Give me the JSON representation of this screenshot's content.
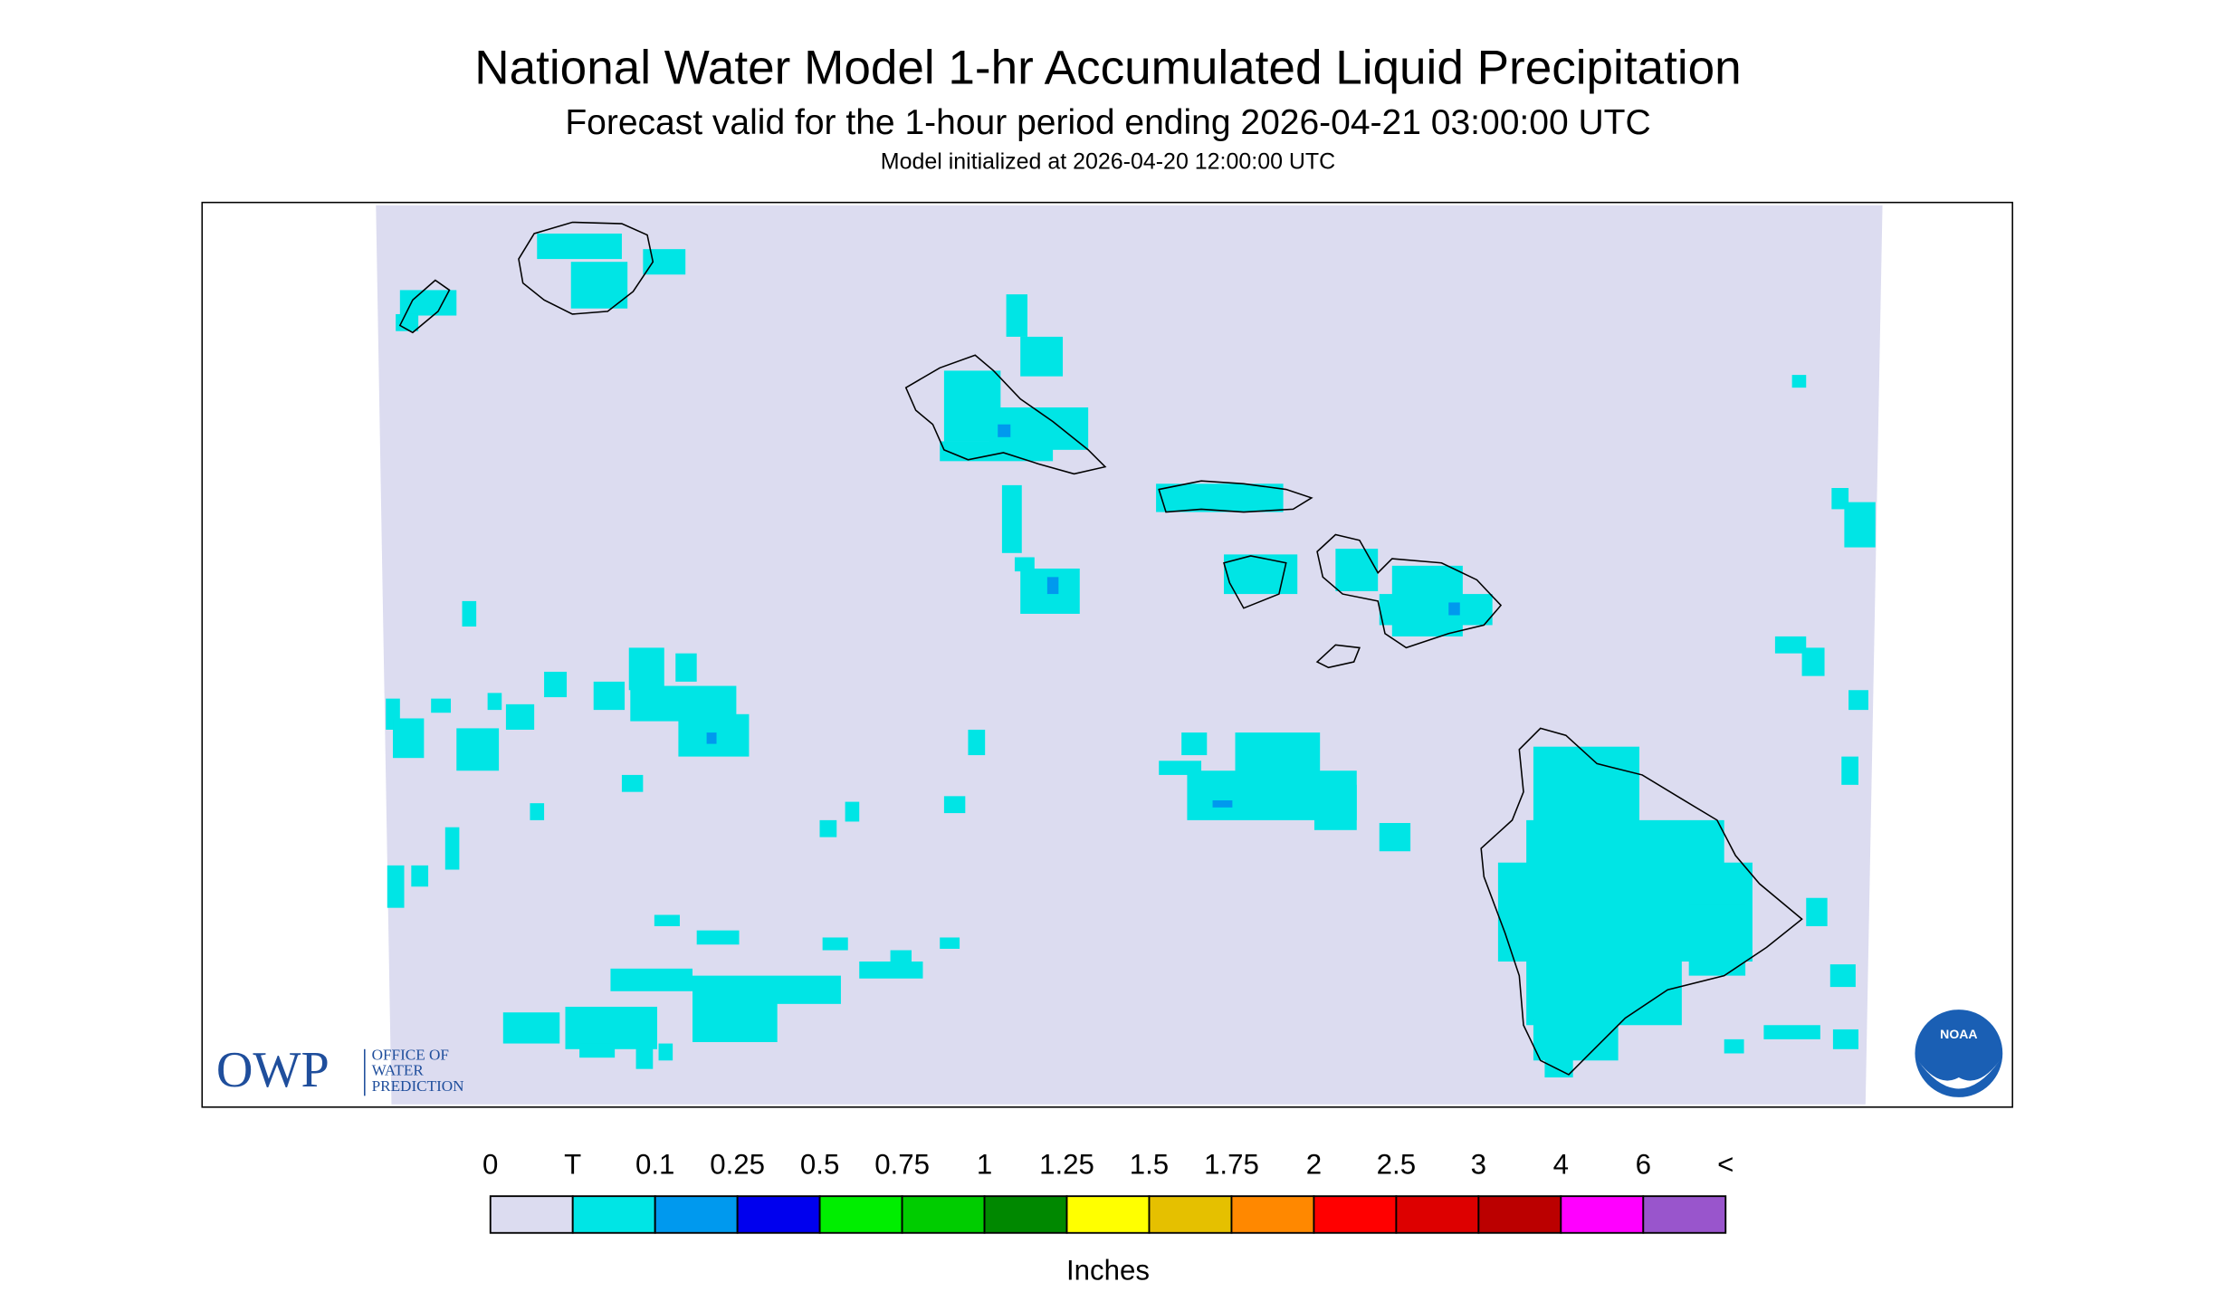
{
  "header": {
    "title": "National Water Model 1-hr Accumulated Liquid Precipitation",
    "subtitle": "Forecast valid for the 1-hour period ending 2026-04-21 03:00:00 UTC",
    "init": "Model initialized at 2026-04-20 12:00:00 UTC"
  },
  "logos": {
    "owp": "OWP",
    "owp_lines": [
      "OFFICE OF",
      "WATER",
      "PREDICTION"
    ],
    "noaa": "NOAA"
  },
  "legend": {
    "labels": [
      "0",
      "T",
      "0.1",
      "0.25",
      "0.5",
      "0.75",
      "1",
      "1.25",
      "1.5",
      "1.75",
      "2",
      "2.5",
      "3",
      "4",
      "6",
      "<"
    ],
    "colors": [
      "#dcdcf0",
      "#00e5e5",
      "#0099ee",
      "#0000ee",
      "#00ee00",
      "#00cc00",
      "#008800",
      "#ffff00",
      "#e5c000",
      "#ff8800",
      "#ff0000",
      "#dd0000",
      "#bb0000",
      "#ff00ff",
      "#9955cc"
    ],
    "unit": "Inches"
  }
}
